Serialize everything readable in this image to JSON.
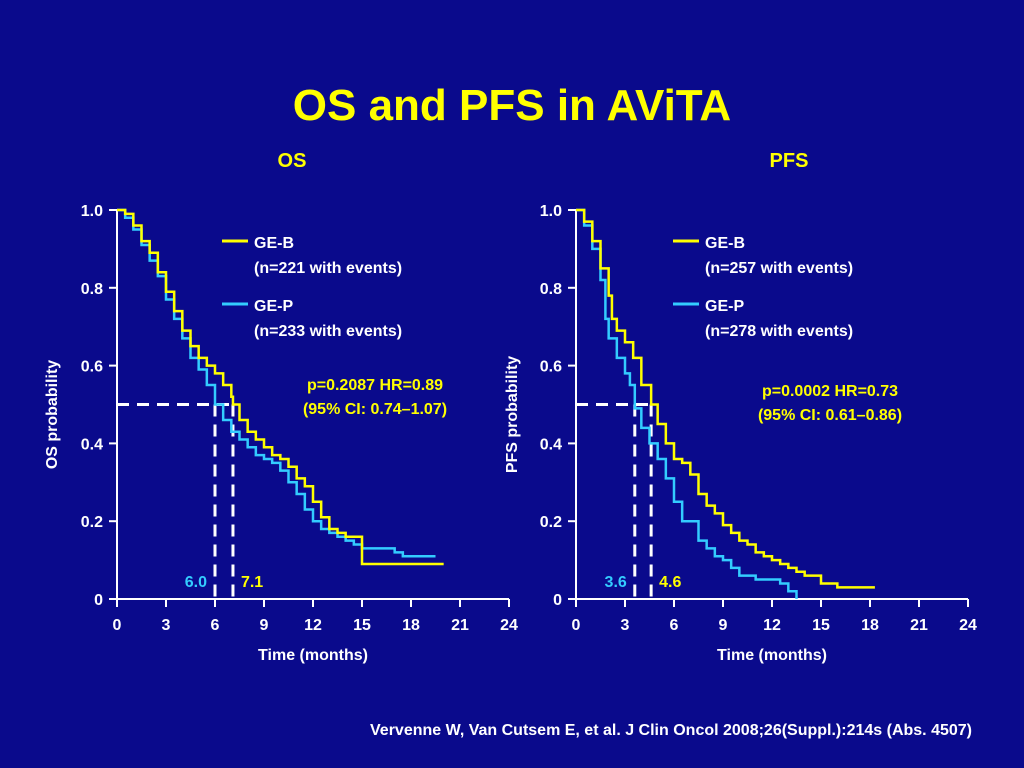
{
  "slide": {
    "title": "OS and PFS in AViTA",
    "citation": "Vervenne W, Van Cutsem E, et al. J Clin Oncol 2008;26(Suppl.):214s (Abs. 4507)"
  },
  "colors": {
    "background": "#0a0a8c",
    "title": "#ffff00",
    "ge_b": "#ffff00",
    "ge_p": "#33ccff",
    "axis": "#ffffff"
  },
  "chart_data": [
    {
      "type": "line",
      "subtitle": "OS",
      "xlabel": "Time (months)",
      "ylabel": "OS probability",
      "xlim": [
        0,
        24
      ],
      "ylim": [
        0,
        1.0
      ],
      "xticks": [
        "0",
        "3",
        "6",
        "9",
        "12",
        "15",
        "18",
        "21",
        "24"
      ],
      "yticks": [
        "0",
        "0.2",
        "0.4",
        "0.6",
        "0.8",
        "1.0"
      ],
      "grid": false,
      "legend_position": "top-right",
      "series": [
        {
          "name": "GE-B",
          "detail": "(n=221 with events)",
          "color": "#ffff00",
          "x": [
            0,
            0.5,
            1,
            1.5,
            2,
            2.5,
            3,
            3.5,
            4,
            4.5,
            5,
            5.5,
            6,
            6.5,
            7,
            7.1,
            7.5,
            8,
            8.5,
            9,
            9.5,
            10,
            10.5,
            11,
            11.5,
            12,
            12.5,
            13,
            13.5,
            14,
            14.5,
            15,
            16,
            17,
            18,
            19,
            20
          ],
          "y": [
            1.0,
            0.99,
            0.96,
            0.92,
            0.89,
            0.84,
            0.79,
            0.74,
            0.69,
            0.65,
            0.62,
            0.6,
            0.58,
            0.55,
            0.52,
            0.5,
            0.46,
            0.43,
            0.41,
            0.39,
            0.37,
            0.36,
            0.34,
            0.31,
            0.29,
            0.25,
            0.21,
            0.18,
            0.17,
            0.16,
            0.16,
            0.09,
            0.09,
            0.09,
            0.09,
            0.09,
            0.09
          ]
        },
        {
          "name": "GE-P",
          "detail": "(n=233 with events)",
          "color": "#33ccff",
          "x": [
            0,
            0.5,
            1,
            1.5,
            2,
            2.5,
            3,
            3.5,
            4,
            4.5,
            5,
            5.5,
            6,
            6.5,
            7,
            7.5,
            8,
            8.5,
            9,
            9.5,
            10,
            10.5,
            11,
            11.5,
            12,
            12.5,
            13,
            13.5,
            14,
            14.5,
            15,
            16,
            17,
            17.5,
            18,
            19.5
          ],
          "y": [
            1.0,
            0.98,
            0.95,
            0.91,
            0.87,
            0.83,
            0.77,
            0.72,
            0.67,
            0.62,
            0.59,
            0.55,
            0.5,
            0.46,
            0.43,
            0.41,
            0.39,
            0.37,
            0.36,
            0.35,
            0.33,
            0.3,
            0.27,
            0.23,
            0.2,
            0.18,
            0.17,
            0.16,
            0.15,
            0.14,
            0.13,
            0.13,
            0.12,
            0.11,
            0.11,
            0.11
          ]
        }
      ],
      "stats": [
        "p=0.2087 HR=0.89",
        "(95% CI: 0.74–1.07)"
      ],
      "medians": [
        {
          "series": "GE-P",
          "value": 6.0,
          "label": "6.0"
        },
        {
          "series": "GE-B",
          "value": 7.1,
          "label": "7.1"
        }
      ],
      "median_level": 0.5
    },
    {
      "type": "line",
      "subtitle": "PFS",
      "xlabel": "Time (months)",
      "ylabel": "PFS probability",
      "xlim": [
        0,
        24
      ],
      "ylim": [
        0,
        1.0
      ],
      "xticks": [
        "0",
        "3",
        "6",
        "9",
        "12",
        "15",
        "18",
        "21",
        "24"
      ],
      "yticks": [
        "0",
        "0.2",
        "0.4",
        "0.6",
        "0.8",
        "1.0"
      ],
      "grid": false,
      "legend_position": "top-right",
      "series": [
        {
          "name": "GE-B",
          "detail": "(n=257 with events)",
          "color": "#ffff00",
          "x": [
            0,
            0.5,
            1,
            1.5,
            2,
            2.2,
            2.5,
            3,
            3.5,
            4,
            4.6,
            5,
            5.5,
            6,
            6.5,
            7,
            7.5,
            8,
            8.5,
            9,
            9.5,
            10,
            10.5,
            11,
            11.5,
            12,
            12.5,
            13,
            13.5,
            14,
            15,
            16,
            17,
            18.3
          ],
          "y": [
            1.0,
            0.97,
            0.92,
            0.85,
            0.78,
            0.72,
            0.69,
            0.66,
            0.62,
            0.55,
            0.5,
            0.45,
            0.4,
            0.36,
            0.35,
            0.32,
            0.27,
            0.24,
            0.22,
            0.19,
            0.17,
            0.15,
            0.14,
            0.12,
            0.11,
            0.1,
            0.09,
            0.08,
            0.07,
            0.06,
            0.04,
            0.03,
            0.03,
            0.03
          ]
        },
        {
          "name": "GE-P",
          "detail": "(n=278 with events)",
          "color": "#33ccff",
          "x": [
            0,
            0.5,
            1,
            1.5,
            1.8,
            2,
            2.5,
            3,
            3.3,
            3.6,
            4,
            4.5,
            5,
            5.5,
            6,
            6.5,
            7,
            7.5,
            8,
            8.5,
            9,
            9.5,
            10,
            11,
            12,
            12.5,
            13,
            13.5
          ],
          "y": [
            1.0,
            0.96,
            0.9,
            0.82,
            0.72,
            0.67,
            0.62,
            0.58,
            0.55,
            0.49,
            0.44,
            0.4,
            0.36,
            0.31,
            0.25,
            0.2,
            0.2,
            0.15,
            0.13,
            0.11,
            0.1,
            0.08,
            0.06,
            0.05,
            0.05,
            0.04,
            0.02,
            0.0
          ]
        }
      ],
      "stats": [
        "p=0.0002 HR=0.73",
        "(95% CI: 0.61–0.86)"
      ],
      "medians": [
        {
          "series": "GE-P",
          "value": 3.6,
          "label": "3.6"
        },
        {
          "series": "GE-B",
          "value": 4.6,
          "label": "4.6"
        }
      ],
      "median_level": 0.5
    }
  ]
}
